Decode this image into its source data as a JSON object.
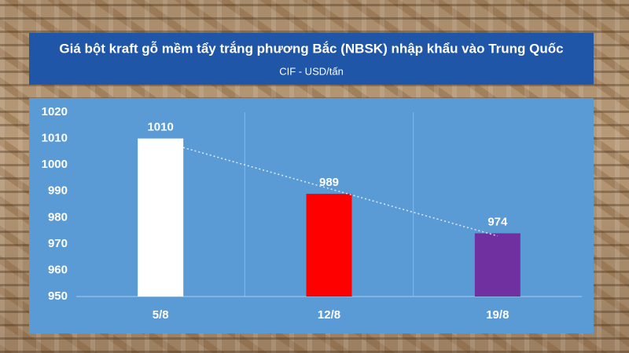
{
  "chart_data": {
    "type": "bar",
    "title": "Giá bột kraft gỗ mềm tẩy trắng phương Bắc (NBSK) nhập khẩu vào Trung Quốc",
    "subtitle": "CIF - USD/tấn",
    "categories": [
      "5/8",
      "12/8",
      "19/8"
    ],
    "values": [
      1010,
      989,
      974
    ],
    "colors": [
      "#ffffff",
      "#ff0000",
      "#7030a0"
    ],
    "ylim": [
      950,
      1020
    ],
    "yticks": [
      950,
      960,
      970,
      980,
      990,
      1000,
      1010,
      1020
    ],
    "trendline": true
  }
}
